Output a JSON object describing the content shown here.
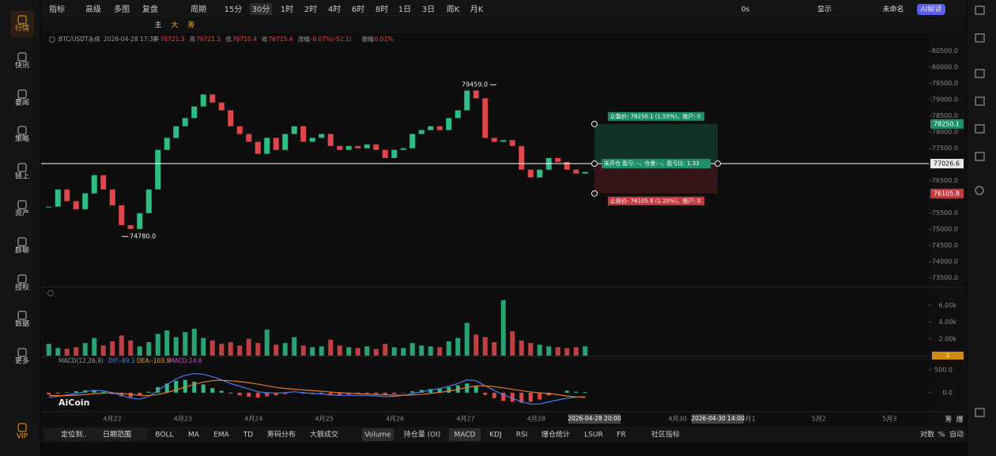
{
  "sidebar": [
    "行情",
    "快讯",
    "要闻",
    "策略",
    "链上",
    "资产",
    "群聊",
    "授权",
    "数据",
    "更多",
    "VIP"
  ],
  "top_bar": {
    "left": [
      "指标",
      "高级",
      "多图",
      "复盘",
      "周期"
    ],
    "periods": [
      "15分",
      "30分",
      "1时",
      "2时",
      "4时",
      "6时",
      "8时",
      "1日",
      "3日",
      "周K",
      "月K"
    ],
    "selected_period": 1,
    "right": [
      "0s",
      "显示",
      "未命名",
      "AI解读"
    ]
  },
  "draw_bar": [
    "主",
    "大",
    "筹"
  ],
  "price": {
    "symbol": "BTC/USDT永续",
    "time": "2026-04-28 17:30",
    "fields": [
      {
        "label": "开",
        "value": 76721.3
      },
      {
        "label": "高",
        "value": 76721.3
      },
      {
        "label": "低",
        "value": 76710.4
      },
      {
        "label": "收",
        "value": 76715.4
      },
      {
        "label": "涨幅",
        "value": "-0.07%(-52.1)"
      },
      {
        "label": "振幅",
        "value": "0.01%"
      }
    ],
    "ylim": [
      73250,
      81000
    ],
    "yticks": [
      {
        "value": 73500,
        "label": "73500.0"
      },
      {
        "value": 74000,
        "label": "74000.0"
      },
      {
        "value": 74500,
        "label": "74500.0"
      },
      {
        "value": 75000,
        "label": "75000.0"
      },
      {
        "value": 75500,
        "label": "75500.0"
      },
      {
        "value": 76000,
        "label": "76000.0"
      },
      {
        "value": 76500,
        "label": "76500.0"
      },
      {
        "value": 77000,
        "label": "77000.0"
      },
      {
        "value": 77500,
        "label": "77500.0"
      },
      {
        "value": 78000,
        "label": "78000.0"
      },
      {
        "value": 78500,
        "label": "78500.0"
      },
      {
        "value": 79000,
        "label": "79000.0"
      },
      {
        "value": 79500,
        "label": "79500.0"
      },
      {
        "value": 80000,
        "label": "80000.0"
      },
      {
        "value": 80500,
        "label": "80500.0"
      }
    ],
    "closes": [
      75700,
      76230,
      75870,
      75620,
      76110,
      76670,
      76230,
      75740,
      75130,
      75010,
      75500,
      76230,
      77450,
      77820,
      78180,
      78430,
      78790,
      79160,
      78910,
      78670,
      78180,
      77940,
      77700,
      77330,
      77820,
      77450,
      77940,
      78180,
      77700,
      77820,
      77940,
      77570,
      77450,
      77570,
      77500,
      77620,
      77450,
      77200,
      77450,
      77500,
      77940,
      78060,
      78180,
      78060,
      78430,
      78670,
      79280,
      79040,
      77820,
      77700,
      77750,
      77570,
      76840,
      76600,
      76840,
      77200,
      77080,
      76840,
      76720,
      76770
    ],
    "up_color": "#2ebd85",
    "down_color": "#e0474c",
    "high_mark": {
      "value": 79459,
      "label": "79459.0"
    },
    "low_mark": {
      "value": 74780,
      "label": "74780.0"
    },
    "current_price": 77026.6,
    "take_profit": 78250.1,
    "stop_loss": 76105.8,
    "tp_text": "止盈价: 78250.1 (1.59%)，账户: 0",
    "mid_text": "未开仓 盈亏: -，仓差: -，盈亏比: 1.33",
    "sl_text": "止损价: 76105.8 (1.20%)，账户: 0"
  },
  "volume": {
    "ylim": [
      0,
      8000
    ],
    "yticks": [
      {
        "value": 2000,
        "label": "2.00k"
      },
      {
        "value": 4000,
        "label": "4.00k"
      },
      {
        "value": 6000,
        "label": "6.00k"
      }
    ],
    "badge": 2,
    "values": [
      1400,
      900,
      800,
      1000,
      1500,
      2100,
      1200,
      1700,
      2400,
      1800,
      1100,
      1600,
      2600,
      3000,
      2200,
      2800,
      3200,
      2100,
      1800,
      1400,
      1600,
      1200,
      2000,
      1500,
      3100,
      1300,
      1500,
      2200,
      1200,
      1000,
      1100,
      1900,
      1200,
      1000,
      900,
      1100,
      800,
      1400,
      1000,
      900,
      1500,
      1200,
      1100,
      1000,
      1700,
      2100,
      3900,
      2500,
      2200,
      1600,
      6600,
      2900,
      1800,
      1500,
      1300,
      1100,
      1000,
      900,
      1000,
      1100
    ]
  },
  "macd": {
    "label": "MACD(12,26,9)",
    "dif_label": "DIF:-89.3",
    "dea_label": "DEA:-103.9",
    "macd_label": "MACD:14.6",
    "ylim": [
      -400,
      775
    ],
    "yticks": [
      {
        "value": 0,
        "label": "0.0"
      },
      {
        "value": 500,
        "label": "500.0"
      }
    ],
    "hist": [
      -40,
      -20,
      10,
      30,
      50,
      60,
      20,
      -30,
      -80,
      -100,
      -60,
      20,
      120,
      200,
      260,
      280,
      240,
      180,
      100,
      40,
      -20,
      -60,
      -90,
      -110,
      -80,
      -60,
      -30,
      0,
      -20,
      -30,
      -20,
      -40,
      -50,
      -40,
      -30,
      -20,
      -30,
      -50,
      -30,
      -10,
      30,
      60,
      80,
      90,
      120,
      160,
      200,
      150,
      -50,
      -120,
      -180,
      -200,
      -220,
      -200,
      -150,
      -60,
      0,
      40,
      20,
      15
    ],
    "dif": [
      -100,
      -80,
      -50,
      -20,
      20,
      50,
      40,
      0,
      -60,
      -120,
      -140,
      -80,
      50,
      180,
      300,
      380,
      420,
      400,
      350,
      280,
      200,
      140,
      80,
      20,
      0,
      -10,
      0,
      20,
      0,
      -20,
      -30,
      -50,
      -60,
      -60,
      -60,
      -60,
      -70,
      -90,
      -80,
      -60,
      -20,
      20,
      60,
      90,
      140,
      200,
      280,
      260,
      150,
      50,
      -50,
      -120,
      -200,
      -250,
      -250,
      -200,
      -160,
      -120,
      -100,
      -89
    ],
    "dea": [
      -60,
      -65,
      -62,
      -54,
      -40,
      -22,
      -10,
      -8,
      -18,
      -38,
      -58,
      -62,
      -40,
      4,
      60,
      124,
      184,
      230,
      262,
      272,
      260,
      242,
      218,
      186,
      150,
      115,
      90,
      75,
      60,
      45,
      30,
      14,
      0,
      -12,
      -22,
      -30,
      -38,
      -48,
      -55,
      -56,
      -50,
      -36,
      -16,
      6,
      34,
      70,
      116,
      146,
      150,
      132,
      104,
      74,
      44,
      16,
      -4,
      -20,
      -44,
      -74,
      -92,
      -104
    ]
  },
  "dates": [
    "4月22",
    "4月23",
    "4月24",
    "4月25",
    "4月26",
    "4月27",
    "4月28",
    "4月29",
    "4月30",
    "5月1",
    "5月2",
    "5月3"
  ],
  "cursor_labels": [
    "2026-04-28 20:00",
    "2026-04-30 14:00"
  ],
  "axis_corner": [
    "筹",
    "爆"
  ],
  "logo": "AiCoin",
  "bottom_bar": {
    "left": [
      "定位到...",
      "日期范围"
    ],
    "indicators": [
      "BOLL",
      "MA",
      "EMA",
      "TD",
      "筹码分布",
      "大额成交",
      "Volume",
      "持仓量 (OI)",
      "MACD",
      "KDJ",
      "RSI",
      "爆仓统计",
      "LSUR",
      "FR",
      "社区指标"
    ],
    "selected": [
      6,
      8
    ],
    "right": [
      "对数",
      "%",
      "自动"
    ]
  }
}
